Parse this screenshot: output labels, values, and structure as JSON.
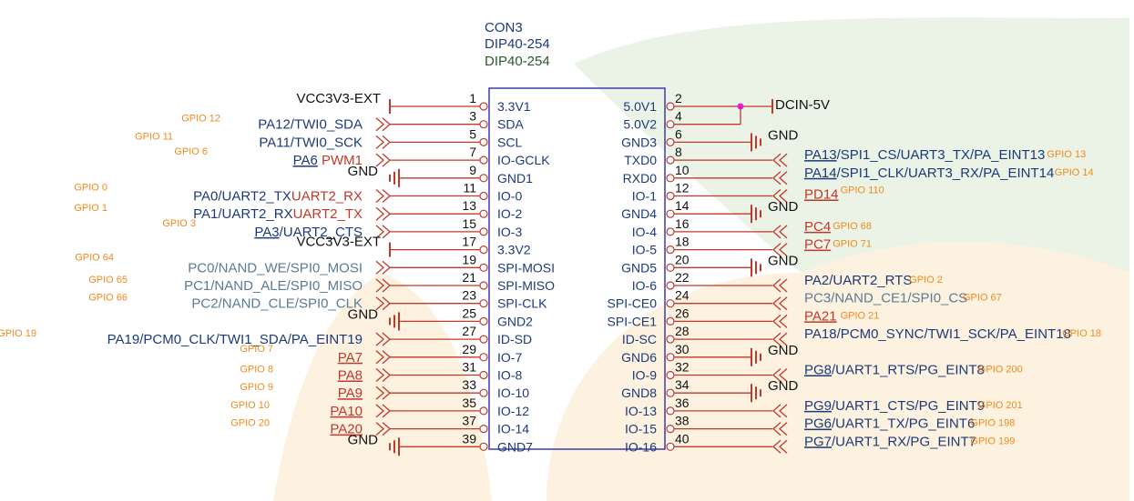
{
  "colors": {
    "ic_box": "#3b3bb0",
    "wire": "#c0392b",
    "ground": "#c0392b",
    "blue": "#1c3a7a",
    "grey_blue": "#5a7a96",
    "red": "#c0392b",
    "green": "#2a5a2a",
    "orange": "#f08a1c",
    "underline": "#2b3bd0",
    "dot": "#e020e0"
  },
  "header": {
    "ref": "CON3",
    "value1": "DIP40-254",
    "value2": "DIP40-254"
  },
  "rows": [
    {
      "r": 0,
      "lpin": "1",
      "lname": "3.3V1",
      "rpin": "2",
      "rname": "5.0V1",
      "l": {
        "kind": "power",
        "segs": [
          {
            "t": "VCC3V3-EXT",
            "c": "#111"
          }
        ]
      },
      "r2": {
        "kind": "power",
        "segs": [
          {
            "t": "DCIN-5V",
            "c": "#111"
          }
        ]
      }
    },
    {
      "r": 1,
      "lpin": "3",
      "lname": "SDA",
      "rpin": "4",
      "rname": "5.0V2",
      "l": {
        "kind": "chev",
        "gpio": "GPIO 12",
        "segs": [
          {
            "t": "PA12/TWI0_SDA",
            "c": "#1c3a7a"
          }
        ]
      },
      "r2": {
        "kind": "joinup"
      }
    },
    {
      "r": 2,
      "lpin": "5",
      "lname": "SCL",
      "rpin": "6",
      "rname": "GND3",
      "l": {
        "kind": "chev",
        "gpio": "GPIO 11",
        "segs": [
          {
            "t": "PA11/TWI0_SCK",
            "c": "#1c3a7a"
          }
        ]
      },
      "r2": {
        "kind": "gnd",
        "segs": [
          {
            "t": "GND",
            "c": "#111"
          }
        ]
      }
    },
    {
      "r": 3,
      "lpin": "7",
      "lname": "IO-GCLK",
      "rpin": "8",
      "rname": "TXD0",
      "l": {
        "kind": "chev",
        "gpio": "GPIO 6",
        "segs": [
          {
            "t": "PA6",
            "c": "#1c3a7a",
            "u": 1
          },
          {
            "t": " PWM1",
            "c": "#c0392b"
          }
        ]
      },
      "r2": {
        "kind": "chev",
        "gpio": "GPIO 13",
        "segs": [
          {
            "t": "PA13",
            "c": "#1c3a7a",
            "u": 1
          },
          {
            "t": "/SPI1_CS/UART3_TX/PA_EINT13",
            "c": "#1c3a7a"
          }
        ]
      }
    },
    {
      "r": 4,
      "lpin": "9",
      "lname": "GND1",
      "rpin": "10",
      "rname": "RXD0",
      "l": {
        "kind": "gnd",
        "segs": [
          {
            "t": "GND",
            "c": "#111"
          }
        ]
      },
      "r2": {
        "kind": "chev",
        "gpio": "GPIO 14",
        "segs": [
          {
            "t": "PA14",
            "c": "#1c3a7a",
            "u": 1
          },
          {
            "t": "/SPI1_CLK/UART3_RX/PA_EINT14",
            "c": "#1c3a7a"
          }
        ]
      }
    },
    {
      "r": 5,
      "lpin": "11",
      "lname": "IO-0",
      "rpin": "12",
      "rname": "IO-1",
      "l": {
        "kind": "chev",
        "gpio": "GPIO 0",
        "segs": [
          {
            "t": "PA0/UART2_TX",
            "c": "#1c3a7a"
          },
          {
            "t": "UART2_RX",
            "c": "#c0392b"
          }
        ]
      },
      "r2": {
        "kind": "chev",
        "gpio": "GPIO 110",
        "segs": [
          {
            "t": "PD14",
            "c": "#c0392b",
            "u": 1
          }
        ]
      }
    },
    {
      "r": 6,
      "lpin": "13",
      "lname": "IO-2",
      "rpin": "14",
      "rname": "GND4",
      "l": {
        "kind": "chev",
        "gpio": "GPIO 1",
        "segs": [
          {
            "t": "PA1/UART2_RX",
            "c": "#1c3a7a"
          },
          {
            "t": "UART2_TX",
            "c": "#c0392b"
          }
        ]
      },
      "r2": {
        "kind": "gnd",
        "segs": [
          {
            "t": "GND",
            "c": "#111"
          }
        ]
      }
    },
    {
      "r": 7,
      "lpin": "15",
      "lname": "IO-3",
      "rpin": "16",
      "rname": "IO-4",
      "l": {
        "kind": "chev",
        "gpio": "GPIO 3",
        "segs": [
          {
            "t": "PA3",
            "c": "#1c3a7a",
            "u": 1
          },
          {
            "t": "/UART2_CTS",
            "c": "#1c3a7a"
          }
        ]
      },
      "r2": {
        "kind": "chev",
        "gpio": "GPIO 68",
        "segs": [
          {
            "t": "PC4",
            "c": "#c0392b",
            "u": 1
          }
        ]
      }
    },
    {
      "r": 8,
      "lpin": "17",
      "lname": "3.3V2",
      "rpin": "18",
      "rname": "IO-5",
      "l": {
        "kind": "power",
        "segs": [
          {
            "t": "VCC3V3-EXT",
            "c": "#111"
          }
        ]
      },
      "r2": {
        "kind": "chev",
        "gpio": "GPIO 71",
        "segs": [
          {
            "t": "PC7",
            "c": "#c0392b",
            "u": 1
          }
        ]
      }
    },
    {
      "r": 9,
      "lpin": "19",
      "lname": "SPI-MOSI",
      "rpin": "20",
      "rname": "GND5",
      "l": {
        "kind": "chev",
        "gpio": "GPIO 64",
        "segs": [
          {
            "t": "PC0/NAND_WE/SPI0_MOSI",
            "c": "#5a7a96"
          }
        ]
      },
      "r2": {
        "kind": "gnd",
        "segs": [
          {
            "t": "GND",
            "c": "#111"
          }
        ]
      }
    },
    {
      "r": 10,
      "lpin": "21",
      "lname": "SPI-MISO",
      "rpin": "22",
      "rname": "IO-6",
      "l": {
        "kind": "chev",
        "gpio": "GPIO 65",
        "segs": [
          {
            "t": "PC1/NAND_ALE/SPI0_MISO",
            "c": "#5a7a96"
          }
        ]
      },
      "r2": {
        "kind": "chev",
        "gpio": "GPIO 2",
        "segs": [
          {
            "t": "PA2/UART2_RTS",
            "c": "#1c3a7a"
          }
        ]
      }
    },
    {
      "r": 11,
      "lpin": "23",
      "lname": "SPI-CLK",
      "rpin": "24",
      "rname": "SPI-CE0",
      "l": {
        "kind": "chev",
        "gpio": "GPIO 66",
        "segs": [
          {
            "t": "PC2/NAND_CLE/SPI0_CLK",
            "c": "#5a7a96"
          }
        ]
      },
      "r2": {
        "kind": "chev",
        "gpio": "GPIO 67",
        "segs": [
          {
            "t": "PC3/NAND_CE1/SPI0_CS",
            "c": "#5a7a96"
          }
        ]
      }
    },
    {
      "r": 12,
      "lpin": "25",
      "lname": "GND2",
      "rpin": "26",
      "rname": "SPI-CE1",
      "l": {
        "kind": "gnd",
        "segs": [
          {
            "t": "GND",
            "c": "#111"
          }
        ]
      },
      "r2": {
        "kind": "chev",
        "gpio": "GPIO 21",
        "segs": [
          {
            "t": "PA21",
            "c": "#c0392b",
            "u": 1
          }
        ]
      }
    },
    {
      "r": 13,
      "lpin": "27",
      "lname": "ID-SD",
      "rpin": "28",
      "rname": "ID-SC",
      "l": {
        "kind": "chev",
        "gpio": "GPIO 19",
        "segs": [
          {
            "t": "PA19/PCM0_CLK/TWI1_SDA/PA_EINT19",
            "c": "#1c3a7a"
          }
        ]
      },
      "r2": {
        "kind": "chev",
        "gpio": "GPIO 18",
        "segs": [
          {
            "t": "PA18/PCM0_SYNC/TWI1_SCK/PA_EINT18",
            "c": "#1c3a7a"
          }
        ]
      }
    },
    {
      "r": 14,
      "lpin": "29",
      "lname": "IO-7",
      "rpin": "30",
      "rname": "GND6",
      "l": {
        "kind": "chev",
        "gpio": "GPIO 7",
        "segs": [
          {
            "t": "PA7",
            "c": "#c0392b",
            "u": 1
          }
        ]
      },
      "r2": {
        "kind": "gnd",
        "segs": [
          {
            "t": "GND",
            "c": "#111"
          }
        ]
      }
    },
    {
      "r": 15,
      "lpin": "31",
      "lname": "IO-8",
      "rpin": "32",
      "rname": "IO-9",
      "l": {
        "kind": "chev",
        "gpio": "GPIO 8",
        "segs": [
          {
            "t": "PA8",
            "c": "#c0392b",
            "u": 1
          }
        ]
      },
      "r2": {
        "kind": "chev",
        "gpio": "GPIO 200",
        "segs": [
          {
            "t": "PG8",
            "c": "#1c3a7a",
            "u": 1
          },
          {
            "t": "/UART1_RTS/PG_EINT8",
            "c": "#1c3a7a"
          }
        ]
      }
    },
    {
      "r": 16,
      "lpin": "33",
      "lname": "IO-10",
      "rpin": "34",
      "rname": "GND8",
      "l": {
        "kind": "chev",
        "gpio": "GPIO 9",
        "segs": [
          {
            "t": "PA9",
            "c": "#c0392b",
            "u": 1
          }
        ]
      },
      "r2": {
        "kind": "gnd",
        "segs": [
          {
            "t": "GND",
            "c": "#111"
          }
        ]
      }
    },
    {
      "r": 17,
      "lpin": "35",
      "lname": "IO-12",
      "rpin": "36",
      "rname": "IO-13",
      "l": {
        "kind": "chev",
        "gpio": "GPIO 10",
        "segs": [
          {
            "t": "PA10",
            "c": "#c0392b",
            "u": 1
          }
        ]
      },
      "r2": {
        "kind": "chev",
        "gpio": "GPIO 201",
        "segs": [
          {
            "t": "PG9",
            "c": "#1c3a7a",
            "u": 1
          },
          {
            "t": "/UART1_CTS/PG_EINT9",
            "c": "#1c3a7a"
          }
        ]
      }
    },
    {
      "r": 18,
      "lpin": "37",
      "lname": "IO-14",
      "rpin": "38",
      "rname": "IO-15",
      "l": {
        "kind": "chev",
        "gpio": "GPIO 20",
        "segs": [
          {
            "t": "PA20",
            "c": "#c0392b",
            "u": 1
          }
        ]
      },
      "r2": {
        "kind": "chev",
        "gpio": "GPIO 198",
        "segs": [
          {
            "t": "PG6",
            "c": "#1c3a7a",
            "u": 1
          },
          {
            "t": "/UART1_TX/PG_EINT6",
            "c": "#1c3a7a"
          }
        ]
      }
    },
    {
      "r": 19,
      "lpin": "39",
      "lname": "GND7",
      "rpin": "40",
      "rname": "IO-16",
      "l": {
        "kind": "gnd",
        "segs": [
          {
            "t": "GND",
            "c": "#111"
          }
        ]
      },
      "r2": {
        "kind": "chev",
        "gpio": "GPIO 199",
        "segs": [
          {
            "t": "PG7",
            "c": "#1c3a7a",
            "u": 1
          },
          {
            "t": "/UART1_RX/PG_EINT7",
            "c": "#1c3a7a"
          }
        ]
      }
    }
  ]
}
